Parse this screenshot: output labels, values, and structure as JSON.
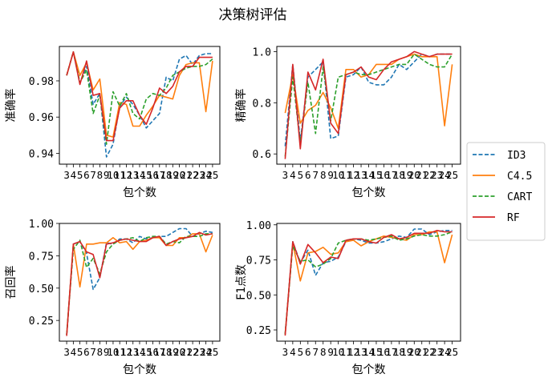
{
  "figure": {
    "suptitle": "决策树评估"
  },
  "legend": {
    "placement": "right-center",
    "entries": [
      {
        "name": "ID3",
        "color": "#1f77b4",
        "dash": "dashed"
      },
      {
        "name": "C4.5",
        "color": "#ff7f0e",
        "dash": "solid"
      },
      {
        "name": "CART",
        "color": "#2ca02c",
        "dash": "dashed"
      },
      {
        "name": "RF",
        "color": "#d62728",
        "dash": "solid"
      }
    ]
  },
  "chart_data": [
    {
      "type": "line",
      "xlabel": "包个数",
      "ylabel": "准确率",
      "x": [
        3,
        4,
        5,
        6,
        7,
        8,
        9,
        10,
        11,
        12,
        13,
        14,
        15,
        16,
        17,
        18,
        19,
        20,
        21,
        22,
        23,
        24,
        25
      ],
      "xticks": [
        "3",
        "4",
        "5",
        "6",
        "7",
        "8",
        "9",
        "10",
        "11",
        "12",
        "13",
        "14",
        "15",
        "16",
        "17",
        "18",
        "19",
        "20",
        "21",
        "22",
        "23",
        "24",
        "25"
      ],
      "ylim": [
        0.934,
        0.999
      ],
      "yticks": [
        0.94,
        0.96,
        0.98
      ],
      "ytick_labels": [
        "0.94",
        "0.96",
        "0.98"
      ],
      "series": [
        {
          "name": "ID3",
          "values": [
            0.983,
            0.996,
            0.979,
            0.988,
            0.967,
            0.973,
            0.938,
            0.945,
            0.966,
            0.971,
            0.967,
            0.961,
            0.954,
            0.958,
            0.962,
            0.982,
            0.98,
            0.992,
            0.994,
            0.989,
            0.994,
            0.995,
            0.995
          ]
        },
        {
          "name": "C4.5",
          "values": [
            0.983,
            0.996,
            0.983,
            0.99,
            0.975,
            0.981,
            0.95,
            0.949,
            0.968,
            0.967,
            0.955,
            0.955,
            0.961,
            0.966,
            0.972,
            0.971,
            0.97,
            0.983,
            0.989,
            0.99,
            0.99,
            0.963,
            0.991
          ]
        },
        {
          "name": "CART",
          "values": [
            0.983,
            0.996,
            0.979,
            0.986,
            0.962,
            0.972,
            0.945,
            0.974,
            0.966,
            0.973,
            0.962,
            0.959,
            0.97,
            0.973,
            0.972,
            0.976,
            0.983,
            0.985,
            0.987,
            0.988,
            0.988,
            0.989,
            0.992
          ]
        },
        {
          "name": "RF",
          "values": [
            0.983,
            0.996,
            0.978,
            0.991,
            0.972,
            0.973,
            0.947,
            0.947,
            0.965,
            0.969,
            0.969,
            0.961,
            0.956,
            0.965,
            0.976,
            0.973,
            0.977,
            0.985,
            0.988,
            0.988,
            0.993,
            0.993,
            0.993
          ]
        }
      ]
    },
    {
      "type": "line",
      "xlabel": "包个数",
      "ylabel": "精确率",
      "x": [
        3,
        4,
        5,
        6,
        7,
        8,
        9,
        10,
        11,
        12,
        13,
        14,
        15,
        16,
        17,
        18,
        19,
        20,
        21,
        22,
        23,
        24,
        25
      ],
      "xticks": [
        "3",
        "4",
        "5",
        "6",
        "7",
        "8",
        "9",
        "10",
        "11",
        "12",
        "13",
        "14",
        "15",
        "16",
        "17",
        "18",
        "19",
        "20",
        "21",
        "22",
        "23",
        "24",
        "25"
      ],
      "ylim": [
        0.56,
        1.02
      ],
      "yticks": [
        0.6,
        0.8,
        1.0
      ],
      "ytick_labels": [
        "0.6",
        "0.8",
        "1.0"
      ],
      "series": [
        {
          "name": "ID3",
          "values": [
            0.63,
            0.95,
            0.65,
            0.9,
            0.93,
            0.96,
            0.66,
            0.67,
            0.9,
            0.91,
            0.94,
            0.88,
            0.87,
            0.87,
            0.9,
            0.95,
            0.93,
            0.96,
            0.99,
            0.98,
            0.99,
            0.99,
            0.99
          ]
        },
        {
          "name": "C4.5",
          "values": [
            0.76,
            0.91,
            0.72,
            0.77,
            0.79,
            0.84,
            0.78,
            0.7,
            0.93,
            0.93,
            0.9,
            0.91,
            0.95,
            0.95,
            0.95,
            0.97,
            0.98,
            0.99,
            0.98,
            0.98,
            0.98,
            0.71,
            0.95
          ]
        },
        {
          "name": "CART",
          "values": [
            0.59,
            0.9,
            0.64,
            0.88,
            0.68,
            0.94,
            0.73,
            0.9,
            0.91,
            0.92,
            0.91,
            0.91,
            0.92,
            0.93,
            0.94,
            0.95,
            0.95,
            0.99,
            0.97,
            0.95,
            0.94,
            0.94,
            0.99
          ]
        },
        {
          "name": "RF",
          "values": [
            0.58,
            0.95,
            0.62,
            0.92,
            0.85,
            0.97,
            0.72,
            0.68,
            0.91,
            0.92,
            0.94,
            0.9,
            0.89,
            0.93,
            0.96,
            0.97,
            0.98,
            1.0,
            0.99,
            0.98,
            0.99,
            0.99,
            0.99
          ]
        }
      ]
    },
    {
      "type": "line",
      "xlabel": "包个数",
      "ylabel": "召回率",
      "x": [
        3,
        4,
        5,
        6,
        7,
        8,
        9,
        10,
        11,
        12,
        13,
        14,
        15,
        16,
        17,
        18,
        19,
        20,
        21,
        22,
        23,
        24,
        25
      ],
      "xticks": [
        "3",
        "4",
        "5",
        "6",
        "7",
        "8",
        "9",
        "10",
        "11",
        "12",
        "13",
        "14",
        "15",
        "16",
        "17",
        "18",
        "19",
        "20",
        "21",
        "22",
        "23",
        "24",
        "25"
      ],
      "ylim": [
        0.09,
        1.0
      ],
      "yticks": [
        0.25,
        0.5,
        0.75,
        1.0
      ],
      "ytick_labels": [
        "0.25",
        "0.50",
        "0.75",
        "1.00"
      ],
      "series": [
        {
          "name": "ID3",
          "values": [
            0.14,
            0.84,
            0.86,
            0.77,
            0.49,
            0.58,
            0.85,
            0.84,
            0.88,
            0.88,
            0.85,
            0.9,
            0.88,
            0.89,
            0.9,
            0.9,
            0.93,
            0.96,
            0.96,
            0.9,
            0.92,
            0.94,
            0.93
          ]
        },
        {
          "name": "C4.5",
          "values": [
            0.14,
            0.84,
            0.51,
            0.84,
            0.84,
            0.85,
            0.85,
            0.89,
            0.85,
            0.86,
            0.8,
            0.86,
            0.87,
            0.89,
            0.89,
            0.83,
            0.83,
            0.89,
            0.89,
            0.92,
            0.92,
            0.78,
            0.91
          ]
        },
        {
          "name": "CART",
          "values": [
            0.14,
            0.8,
            0.87,
            0.66,
            0.73,
            0.61,
            0.78,
            0.84,
            0.87,
            0.88,
            0.89,
            0.86,
            0.89,
            0.9,
            0.9,
            0.84,
            0.86,
            0.85,
            0.9,
            0.9,
            0.9,
            0.92,
            0.92
          ]
        },
        {
          "name": "RF",
          "values": [
            0.13,
            0.84,
            0.86,
            0.78,
            0.76,
            0.58,
            0.84,
            0.85,
            0.87,
            0.88,
            0.87,
            0.86,
            0.86,
            0.89,
            0.9,
            0.83,
            0.86,
            0.88,
            0.89,
            0.9,
            0.93,
            0.91,
            0.92
          ]
        }
      ]
    },
    {
      "type": "line",
      "xlabel": "包个数",
      "ylabel": "F1点数",
      "x": [
        3,
        4,
        5,
        6,
        7,
        8,
        9,
        10,
        11,
        12,
        13,
        14,
        15,
        16,
        17,
        18,
        19,
        20,
        21,
        22,
        23,
        24,
        25
      ],
      "xticks": [
        "3",
        "4",
        "5",
        "6",
        "7",
        "8",
        "9",
        "10",
        "11",
        "12",
        "13",
        "14",
        "15",
        "16",
        "17",
        "18",
        "19",
        "20",
        "21",
        "22",
        "23",
        "24",
        "25"
      ],
      "ylim": [
        0.17,
        1.01
      ],
      "yticks": [
        0.25,
        0.5,
        0.75,
        1.0
      ],
      "ytick_labels": [
        "0.25",
        "0.50",
        "0.75",
        "1.00"
      ],
      "series": [
        {
          "name": "ID3",
          "values": [
            0.22,
            0.88,
            0.73,
            0.82,
            0.64,
            0.73,
            0.74,
            0.77,
            0.88,
            0.9,
            0.89,
            0.87,
            0.87,
            0.88,
            0.9,
            0.92,
            0.91,
            0.97,
            0.97,
            0.93,
            0.95,
            0.96,
            0.96
          ]
        },
        {
          "name": "C4.5",
          "values": [
            0.22,
            0.87,
            0.6,
            0.8,
            0.81,
            0.84,
            0.79,
            0.8,
            0.88,
            0.89,
            0.85,
            0.88,
            0.9,
            0.92,
            0.91,
            0.9,
            0.89,
            0.93,
            0.93,
            0.95,
            0.95,
            0.73,
            0.93
          ]
        },
        {
          "name": "CART",
          "values": [
            0.22,
            0.85,
            0.74,
            0.75,
            0.7,
            0.72,
            0.76,
            0.87,
            0.89,
            0.9,
            0.9,
            0.89,
            0.9,
            0.91,
            0.92,
            0.89,
            0.9,
            0.92,
            0.93,
            0.92,
            0.92,
            0.93,
            0.95
          ]
        },
        {
          "name": "RF",
          "values": [
            0.21,
            0.88,
            0.72,
            0.86,
            0.8,
            0.73,
            0.77,
            0.76,
            0.89,
            0.9,
            0.9,
            0.88,
            0.87,
            0.91,
            0.93,
            0.9,
            0.91,
            0.94,
            0.94,
            0.94,
            0.96,
            0.95,
            0.95
          ]
        }
      ]
    }
  ]
}
